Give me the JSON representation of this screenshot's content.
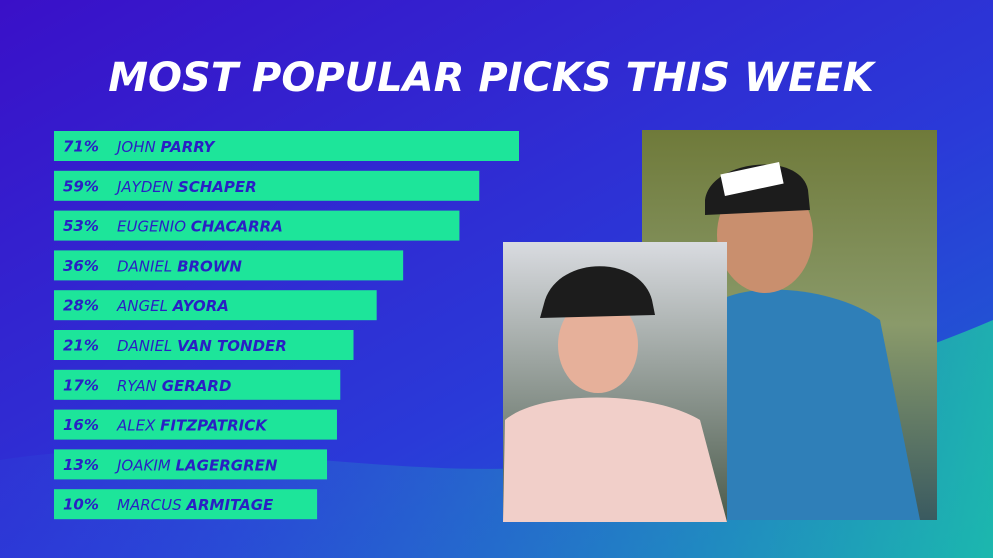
{
  "chart_data": {
    "type": "bar",
    "orientation": "horizontal",
    "title": "MOST POPULAR PICKS THIS WEEK",
    "categories": [
      {
        "first": "JOHN",
        "last": "PARRY"
      },
      {
        "first": "JAYDEN",
        "last": "SCHAPER"
      },
      {
        "first": "EUGENIO",
        "last": "CHACARRA"
      },
      {
        "first": "DANIEL",
        "last": "BROWN"
      },
      {
        "first": "ANGEL",
        "last": "AYORA"
      },
      {
        "first": "DANIEL",
        "last": "VAN TONDER"
      },
      {
        "first": "RYAN",
        "last": "GERARD"
      },
      {
        "first": "ALEX",
        "last": "FITZPATRICK"
      },
      {
        "first": "JOAKIM",
        "last": "LAGERGREN"
      },
      {
        "first": "MARCUS",
        "last": "ARMITAGE"
      }
    ],
    "values": [
      71,
      59,
      53,
      36,
      28,
      21,
      17,
      16,
      13,
      10
    ],
    "value_labels": [
      "71%",
      "59%",
      "53%",
      "36%",
      "28%",
      "21%",
      "17%",
      "16%",
      "13%",
      "10%"
    ],
    "color": "#1de59a"
  }
}
